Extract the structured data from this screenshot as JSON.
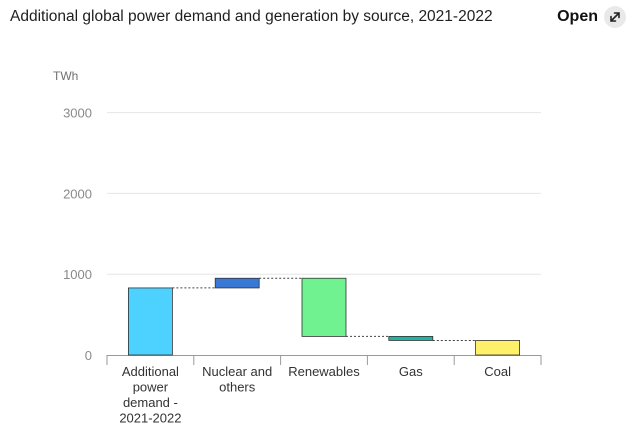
{
  "header": {
    "title": "Additional global power demand and generation by source, 2021-2022",
    "open_label": "Open"
  },
  "chart_data": {
    "type": "waterfall",
    "title": "Additional global power demand and generation by source, 2021-2022",
    "ylabel": "TWh",
    "ylim": [
      0,
      3200
    ],
    "yticks": [
      {
        "value": 0,
        "label": "0"
      },
      {
        "value": 1000,
        "label": "1000"
      },
      {
        "value": 2000,
        "label": "2000"
      },
      {
        "value": 3000,
        "label": "3000"
      }
    ],
    "categories": [
      {
        "lines": [
          "Additional",
          "power",
          "demand -",
          "2021-2022"
        ]
      },
      {
        "lines": [
          "Nuclear and",
          "others"
        ]
      },
      {
        "lines": [
          "Renewables"
        ]
      },
      {
        "lines": [
          "Gas"
        ]
      },
      {
        "lines": [
          "Coal"
        ]
      }
    ],
    "bars": [
      {
        "low": 0,
        "high": 830,
        "color": "#4dd2ff"
      },
      {
        "low": 830,
        "high": 950,
        "color": "#3a78d6"
      },
      {
        "low": 230,
        "high": 950,
        "color": "#6ff28f"
      },
      {
        "low": 180,
        "high": 230,
        "color": "#1fb5a6"
      },
      {
        "low": 0,
        "high": 180,
        "color": "#fff06a"
      }
    ],
    "connectors": [
      830,
      950,
      230,
      180
    ],
    "colors": {
      "grid": "#e6e6e6",
      "axis": "#9a9a9a",
      "connector": "#444444",
      "bar_stroke": "#333333"
    }
  }
}
